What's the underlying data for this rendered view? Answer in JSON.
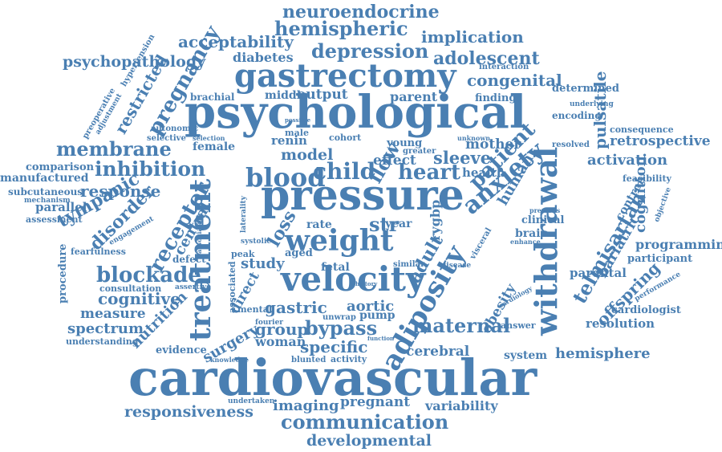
{
  "word_color": "#4a7fb2",
  "background": "#ffffff",
  "words": [
    {
      "text": "cardiovascular",
      "orientation": "horizontal"
    },
    {
      "text": "psychological",
      "orientation": "horizontal"
    },
    {
      "text": "pressure",
      "orientation": "horizontal"
    },
    {
      "text": "gastrectomy",
      "orientation": "horizontal"
    },
    {
      "text": "velocity",
      "orientation": "horizontal"
    },
    {
      "text": "weight",
      "orientation": "horizontal"
    },
    {
      "text": "treatment",
      "orientation": "vertical"
    },
    {
      "text": "withdrawal",
      "orientation": "vertical"
    },
    {
      "text": "adiposity",
      "orientation": "vertical"
    },
    {
      "text": "neuroendocrine",
      "orientation": "horizontal"
    },
    {
      "text": "hemispheric",
      "orientation": "horizontal"
    },
    {
      "text": "implication",
      "orientation": "horizontal"
    },
    {
      "text": "acceptability",
      "orientation": "horizontal"
    },
    {
      "text": "depression",
      "orientation": "horizontal"
    },
    {
      "text": "adolescent",
      "orientation": "horizontal"
    },
    {
      "text": "psychopathology",
      "orientation": "horizontal"
    },
    {
      "text": "diabetes",
      "orientation": "horizontal"
    },
    {
      "text": "congenital",
      "orientation": "horizontal"
    },
    {
      "text": "interaction",
      "orientation": "horizontal"
    },
    {
      "text": "pregnancy",
      "orientation": "vertical"
    },
    {
      "text": "restricted",
      "orientation": "vertical"
    },
    {
      "text": "preoperative",
      "orientation": "vertical"
    },
    {
      "text": "hypertension",
      "orientation": "vertical"
    },
    {
      "text": "adjustment",
      "orientation": "vertical"
    },
    {
      "text": "brachial",
      "orientation": "horizontal"
    },
    {
      "text": "middle",
      "orientation": "horizontal"
    },
    {
      "text": "output",
      "orientation": "horizontal"
    },
    {
      "text": "parent",
      "orientation": "horizontal"
    },
    {
      "text": "finding",
      "orientation": "horizontal"
    },
    {
      "text": "determined",
      "orientation": "horizontal"
    },
    {
      "text": "underlying",
      "orientation": "horizontal"
    },
    {
      "text": "encoding",
      "orientation": "horizontal"
    },
    {
      "text": "pulsatile",
      "orientation": "vertical"
    },
    {
      "text": "autonomic",
      "orientation": "horizontal"
    },
    {
      "text": "selective",
      "orientation": "horizontal"
    },
    {
      "text": "selection",
      "orientation": "horizontal"
    },
    {
      "text": "possible",
      "orientation": "horizontal"
    },
    {
      "text": "male",
      "orientation": "horizontal"
    },
    {
      "text": "cohort",
      "orientation": "horizontal"
    },
    {
      "text": "young",
      "orientation": "horizontal"
    },
    {
      "text": "unknown",
      "orientation": "horizontal"
    },
    {
      "text": "resolved",
      "orientation": "horizontal"
    },
    {
      "text": "consequence",
      "orientation": "horizontal"
    },
    {
      "text": "retrospective",
      "orientation": "horizontal"
    },
    {
      "text": "membrane",
      "orientation": "horizontal"
    },
    {
      "text": "female",
      "orientation": "horizontal"
    },
    {
      "text": "renin",
      "orientation": "horizontal"
    },
    {
      "text": "mother",
      "orientation": "horizontal"
    },
    {
      "text": "greater",
      "orientation": "horizontal"
    },
    {
      "text": "comparison",
      "orientation": "horizontal"
    },
    {
      "text": "model",
      "orientation": "horizontal"
    },
    {
      "text": "effect",
      "orientation": "horizontal"
    },
    {
      "text": "sleeve",
      "orientation": "horizontal"
    },
    {
      "text": "activation",
      "orientation": "horizontal"
    },
    {
      "text": "inhibition",
      "orientation": "horizontal"
    },
    {
      "text": "manufactured",
      "orientation": "horizontal"
    },
    {
      "text": "blood",
      "orientation": "horizontal"
    },
    {
      "text": "child",
      "orientation": "horizontal"
    },
    {
      "text": "heart",
      "orientation": "horizontal"
    },
    {
      "text": "health",
      "orientation": "horizontal"
    },
    {
      "text": "feasibility",
      "orientation": "horizontal"
    },
    {
      "text": "subcutaneous",
      "orientation": "horizontal"
    },
    {
      "text": "response",
      "orientation": "horizontal"
    },
    {
      "text": "mechanism",
      "orientation": "horizontal"
    },
    {
      "text": "parallel",
      "orientation": "horizontal"
    },
    {
      "text": "patient",
      "orientation": "horizontal"
    },
    {
      "text": "flow",
      "orientation": "horizontal"
    },
    {
      "text": "cognition",
      "orientation": "vertical"
    },
    {
      "text": "assessment",
      "orientation": "horizontal"
    },
    {
      "text": "tympanic",
      "orientation": "horizontal"
    },
    {
      "text": "previous",
      "orientation": "horizontal"
    },
    {
      "text": "control",
      "orientation": "vertical"
    },
    {
      "text": "objective",
      "orientation": "vertical"
    },
    {
      "text": "disorder",
      "orientation": "horizontal"
    },
    {
      "text": "receptor",
      "orientation": "horizontal"
    },
    {
      "text": "engagement",
      "orientation": "horizontal"
    },
    {
      "text": "central",
      "orientation": "horizontal"
    },
    {
      "text": "association",
      "orientation": "vertical"
    },
    {
      "text": "laterality",
      "orientation": "vertical"
    },
    {
      "text": "rate",
      "orientation": "horizontal"
    },
    {
      "text": "year",
      "orientation": "horizontal"
    },
    {
      "text": "human",
      "orientation": "horizontal"
    },
    {
      "text": "clinical",
      "orientation": "horizontal"
    },
    {
      "text": "enhance",
      "orientation": "horizontal"
    },
    {
      "text": "brain",
      "orientation": "horizontal"
    },
    {
      "text": "programming",
      "orientation": "horizontal"
    },
    {
      "text": "telmisartan",
      "orientation": "vertical"
    },
    {
      "text": "bariatric",
      "orientation": "horizontal"
    },
    {
      "text": "procedure",
      "orientation": "vertical"
    },
    {
      "text": "fearfulness",
      "orientation": "horizontal"
    },
    {
      "text": "loss",
      "orientation": "horizontal"
    },
    {
      "text": "systolic",
      "orientation": "horizontal"
    },
    {
      "text": "str",
      "orientation": "horizontal"
    },
    {
      "text": "adult",
      "orientation": "horizontal"
    },
    {
      "text": "rygbp",
      "orientation": "vertical"
    },
    {
      "text": "visceral",
      "orientation": "vertical"
    },
    {
      "text": "participant",
      "orientation": "horizontal"
    },
    {
      "text": "blockade",
      "orientation": "horizontal"
    },
    {
      "text": "defect",
      "orientation": "horizontal"
    },
    {
      "text": "peak",
      "orientation": "horizontal"
    },
    {
      "text": "study",
      "orientation": "horizontal"
    },
    {
      "text": "aged",
      "orientation": "horizontal"
    },
    {
      "text": "fetal",
      "orientation": "horizontal"
    },
    {
      "text": "anxiety",
      "orientation": "horizontal"
    },
    {
      "text": "parental",
      "orientation": "horizontal"
    },
    {
      "text": "consultation",
      "orientation": "horizontal"
    },
    {
      "text": "assertive",
      "orientation": "horizontal"
    },
    {
      "text": "associated",
      "orientation": "vertical"
    },
    {
      "text": "cognitive",
      "orientation": "horizontal"
    },
    {
      "text": "direct",
      "orientation": "horizontal"
    },
    {
      "text": "history",
      "orientation": "horizontal"
    },
    {
      "text": "similar",
      "orientation": "horizontal"
    },
    {
      "text": "disease",
      "orientation": "horizontal"
    },
    {
      "text": "offspring",
      "orientation": "horizontal"
    },
    {
      "text": "performance",
      "orientation": "horizontal"
    },
    {
      "text": "measure",
      "orientation": "horizontal"
    },
    {
      "text": "mental",
      "orientation": "horizontal"
    },
    {
      "text": "gastric",
      "orientation": "horizontal"
    },
    {
      "text": "aortic",
      "orientation": "horizontal"
    },
    {
      "text": "obesity",
      "orientation": "horizontal"
    },
    {
      "text": "cardiology",
      "orientation": "horizontal"
    },
    {
      "text": "cardiologist",
      "orientation": "horizontal"
    },
    {
      "text": "spectrum",
      "orientation": "horizontal"
    },
    {
      "text": "nutrition",
      "orientation": "horizontal"
    },
    {
      "text": "surgery",
      "orientation": "horizontal"
    },
    {
      "text": "fourier",
      "orientation": "horizontal"
    },
    {
      "text": "group",
      "orientation": "horizontal"
    },
    {
      "text": "bypass",
      "orientation": "horizontal"
    },
    {
      "text": "pump",
      "orientation": "horizontal"
    },
    {
      "text": "unwrap",
      "orientation": "horizontal"
    },
    {
      "text": "maternal",
      "orientation": "horizontal"
    },
    {
      "text": "answer",
      "orientation": "horizontal"
    },
    {
      "text": "resolution",
      "orientation": "horizontal"
    },
    {
      "text": "understanding",
      "orientation": "horizontal"
    },
    {
      "text": "evidence",
      "orientation": "horizontal"
    },
    {
      "text": "woman",
      "orientation": "horizontal"
    },
    {
      "text": "specific",
      "orientation": "horizontal"
    },
    {
      "text": "function",
      "orientation": "horizontal"
    },
    {
      "text": "system",
      "orientation": "horizontal"
    },
    {
      "text": "hemisphere",
      "orientation": "horizontal"
    },
    {
      "text": "knowledge",
      "orientation": "horizontal"
    },
    {
      "text": "blunted",
      "orientation": "horizontal"
    },
    {
      "text": "activity",
      "orientation": "horizontal"
    },
    {
      "text": "cerebral",
      "orientation": "horizontal"
    },
    {
      "text": "undertaken",
      "orientation": "horizontal"
    },
    {
      "text": "imaging",
      "orientation": "horizontal"
    },
    {
      "text": "pregnant",
      "orientation": "horizontal"
    },
    {
      "text": "variability",
      "orientation": "horizontal"
    },
    {
      "text": "responsiveness",
      "orientation": "horizontal"
    },
    {
      "text": "communication",
      "orientation": "horizontal"
    },
    {
      "text": "developmental",
      "orientation": "horizontal"
    }
  ]
}
